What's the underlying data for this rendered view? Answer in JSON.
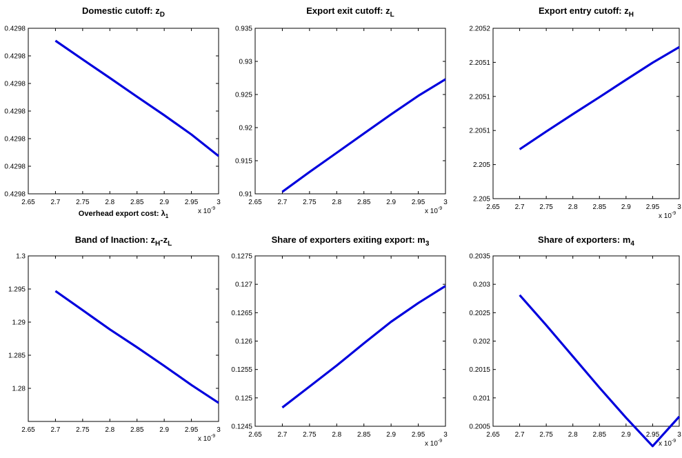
{
  "chart_data": [
    {
      "type": "line",
      "title": "Domestic cutoff: z",
      "title_sub": "D",
      "xlabel": "Overhead export cost: λ",
      "xlabel_sub": "1",
      "x_multiplier": "x 10",
      "x_multiplier_exp": "-9",
      "xlim": [
        2.65,
        3.0
      ],
      "xticks": [
        "2.65",
        "2.7",
        "2.75",
        "2.8",
        "2.85",
        "2.9",
        "2.95",
        "3"
      ],
      "ylim": [
        0.0,
        6.0
      ],
      "yticks": [
        "0.4298",
        "0.4298",
        "0.4298",
        "0.4298",
        "0.4298",
        "0.4298",
        "0.4298"
      ],
      "series": [
        {
          "color": "#0000dd",
          "x": [
            2.7,
            2.75,
            2.8,
            2.85,
            2.9,
            2.95,
            3.0
          ],
          "y": [
            5.55,
            4.87,
            4.2,
            3.52,
            2.85,
            2.15,
            1.37
          ]
        }
      ]
    },
    {
      "type": "line",
      "title": "Export exit cutoff: z",
      "title_sub": "L",
      "xlabel": "",
      "xlabel_sub": "",
      "x_multiplier": "x 10",
      "x_multiplier_exp": "-9",
      "xlim": [
        2.65,
        3.0
      ],
      "xticks": [
        "2.65",
        "2.7",
        "2.75",
        "2.8",
        "2.85",
        "2.9",
        "2.95",
        "3"
      ],
      "ylim": [
        0.91,
        0.935
      ],
      "yticks": [
        "0.91",
        "0.915",
        "0.92",
        "0.925",
        "0.93",
        "0.935"
      ],
      "series": [
        {
          "color": "#0000dd",
          "x": [
            2.7,
            2.75,
            2.8,
            2.85,
            2.9,
            2.95,
            3.0
          ],
          "y": [
            0.9103,
            0.9133,
            0.9162,
            0.9191,
            0.922,
            0.9248,
            0.9273
          ]
        }
      ]
    },
    {
      "type": "line",
      "title": "Export entry cutoff: z",
      "title_sub": "H",
      "xlabel": "",
      "xlabel_sub": "",
      "x_multiplier": "x 10",
      "x_multiplier_exp": "-9",
      "xlim": [
        2.65,
        3.0
      ],
      "xticks": [
        "2.65",
        "2.7",
        "2.75",
        "2.8",
        "2.85",
        "2.9",
        "2.95",
        "3"
      ],
      "ylim": [
        0.0,
        5.0
      ],
      "yticks": [
        "2.205",
        "2.205",
        "2.2051",
        "2.2051",
        "2.2051",
        "2.2052"
      ],
      "series": [
        {
          "color": "#0000dd",
          "x": [
            2.7,
            2.75,
            2.8,
            2.85,
            2.9,
            2.95,
            3.0
          ],
          "y": [
            1.45,
            1.97,
            2.48,
            2.98,
            3.49,
            3.99,
            4.45
          ]
        }
      ]
    },
    {
      "type": "line",
      "title": "Band of Inaction: z",
      "title_sub": "H",
      "title_mid": "-z",
      "title_sub2": "L",
      "xlabel": "",
      "xlabel_sub": "",
      "x_multiplier": "x 10",
      "x_multiplier_exp": "-9",
      "xlim": [
        2.65,
        3.0
      ],
      "xticks": [
        "2.65",
        "2.7",
        "2.75",
        "2.8",
        "2.85",
        "2.9",
        "2.95",
        "3"
      ],
      "ylim": [
        1.275,
        1.3
      ],
      "yticks": [
        "",
        "1.28",
        "1.285",
        "1.29",
        "1.295",
        "1.3"
      ],
      "series": [
        {
          "color": "#0000dd",
          "x": [
            2.7,
            2.75,
            2.8,
            2.85,
            2.9,
            2.95,
            3.0
          ],
          "y": [
            1.2947,
            1.2918,
            1.2889,
            1.2862,
            1.2834,
            1.2805,
            1.2778
          ]
        }
      ]
    },
    {
      "type": "line",
      "title": "Share of exporters exiting export: m",
      "title_sub": "3",
      "xlabel": "",
      "xlabel_sub": "",
      "x_multiplier": "x 10",
      "x_multiplier_exp": "-9",
      "xlim": [
        2.65,
        3.0
      ],
      "xticks": [
        "2.65",
        "2.7",
        "2.75",
        "2.8",
        "2.85",
        "2.9",
        "2.95",
        "3"
      ],
      "ylim": [
        0.1245,
        0.1275
      ],
      "yticks": [
        "0.1245",
        "0.125",
        "0.1255",
        "0.126",
        "0.1265",
        "0.127",
        "0.1275"
      ],
      "series": [
        {
          "color": "#0000dd",
          "x": [
            2.7,
            2.75,
            2.8,
            2.85,
            2.9,
            2.95,
            3.0
          ],
          "y": [
            0.12483,
            0.1252,
            0.12557,
            0.12596,
            0.12634,
            0.12667,
            0.12697
          ]
        }
      ]
    },
    {
      "type": "line",
      "title": "Share of exporters: m",
      "title_sub": "4",
      "xlabel": "",
      "xlabel_sub": "",
      "x_multiplier": "x 10",
      "x_multiplier_exp": "-9",
      "xlim": [
        2.65,
        3.0
      ],
      "xticks": [
        "2.65",
        "2.7",
        "2.75",
        "2.8",
        "2.85",
        "2.9",
        "2.95",
        "3"
      ],
      "ylim": [
        0.2005,
        0.2035
      ],
      "yticks": [
        "0.2005",
        "0.201",
        "0.2015",
        "0.202",
        "0.2025",
        "0.203",
        "0.2035"
      ],
      "series": [
        {
          "color": "#0000dd",
          "x": [
            2.7,
            2.75,
            2.8,
            2.85,
            2.9,
            2.95,
            3.0
          ],
          "y": [
            0.20281,
            0.20228,
            0.20173,
            0.20118,
            0.20065,
            0.20015,
            0.20067
          ]
        }
      ]
    }
  ]
}
